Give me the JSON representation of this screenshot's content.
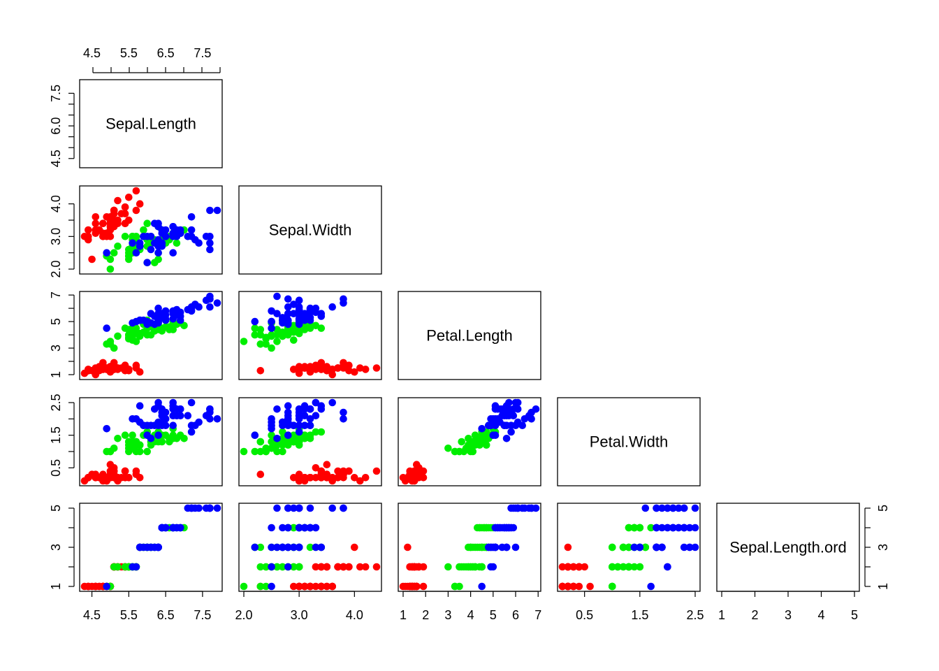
{
  "chart_data": {
    "type": "scatter",
    "layout": "lower-triangle scatterplot matrix",
    "variables": [
      "Sepal.Length",
      "Sepal.Width",
      "Petal.Length",
      "Petal.Width",
      "Sepal.Length.ord"
    ],
    "axes": [
      {
        "name": "Sepal.Length",
        "lim": [
          4.3,
          7.9
        ],
        "ticks": [
          4.5,
          5.5,
          6.5,
          7.5
        ],
        "left_ticks": [
          4.5,
          6.0,
          7.5
        ],
        "left_tick_labels": [
          "4.5",
          "6.0",
          "7.5"
        ]
      },
      {
        "name": "Sepal.Width",
        "lim": [
          2.0,
          4.4
        ],
        "ticks": [
          2.0,
          3.0,
          4.0
        ],
        "tick_labels": [
          "2.0",
          "3.0",
          "4.0"
        ],
        "left_tick_labels": [
          "2.0",
          "3.0",
          "4.0"
        ]
      },
      {
        "name": "Petal.Length",
        "lim": [
          1.0,
          6.9
        ],
        "ticks": [
          1,
          2,
          3,
          4,
          5,
          6,
          7
        ],
        "left_ticks": [
          1,
          3,
          5,
          7
        ]
      },
      {
        "name": "Petal.Width",
        "lim": [
          0.1,
          2.5
        ],
        "ticks": [
          0.5,
          1.5,
          2.5
        ]
      },
      {
        "name": "Sepal.Length.ord",
        "lim": [
          1,
          5
        ],
        "ticks": [
          1,
          2,
          3,
          4,
          5
        ],
        "left_ticks": [
          1,
          3,
          5
        ]
      }
    ],
    "group_colors": [
      "#ff0000",
      "#00ee00",
      "#0000ff"
    ],
    "grid": false,
    "legend": "none",
    "points": [
      [
        5.1,
        3.5,
        1.4,
        0.2,
        2,
        0
      ],
      [
        4.9,
        3.0,
        1.4,
        0.2,
        1,
        0
      ],
      [
        4.7,
        3.2,
        1.3,
        0.2,
        1,
        0
      ],
      [
        4.6,
        3.1,
        1.5,
        0.2,
        1,
        0
      ],
      [
        5.0,
        3.6,
        1.4,
        0.2,
        1,
        0
      ],
      [
        5.4,
        3.9,
        1.7,
        0.4,
        2,
        0
      ],
      [
        4.6,
        3.4,
        1.4,
        0.3,
        1,
        0
      ],
      [
        5.0,
        3.4,
        1.5,
        0.2,
        1,
        0
      ],
      [
        4.4,
        2.9,
        1.4,
        0.2,
        1,
        0
      ],
      [
        4.9,
        3.1,
        1.5,
        0.1,
        1,
        0
      ],
      [
        5.4,
        3.7,
        1.5,
        0.2,
        2,
        0
      ],
      [
        4.8,
        3.4,
        1.6,
        0.2,
        1,
        0
      ],
      [
        4.8,
        3.0,
        1.4,
        0.1,
        1,
        0
      ],
      [
        4.3,
        3.0,
        1.1,
        0.1,
        1,
        0
      ],
      [
        5.8,
        4.0,
        1.2,
        0.2,
        3,
        0
      ],
      [
        5.7,
        4.4,
        1.5,
        0.4,
        2,
        0
      ],
      [
        5.4,
        3.9,
        1.3,
        0.4,
        2,
        0
      ],
      [
        5.1,
        3.5,
        1.4,
        0.3,
        2,
        0
      ],
      [
        5.7,
        3.8,
        1.7,
        0.3,
        2,
        0
      ],
      [
        5.1,
        3.8,
        1.5,
        0.3,
        2,
        0
      ],
      [
        5.4,
        3.4,
        1.7,
        0.2,
        2,
        0
      ],
      [
        5.1,
        3.7,
        1.5,
        0.4,
        2,
        0
      ],
      [
        4.6,
        3.6,
        1.0,
        0.2,
        1,
        0
      ],
      [
        5.1,
        3.3,
        1.7,
        0.5,
        2,
        0
      ],
      [
        4.8,
        3.4,
        1.9,
        0.2,
        1,
        0
      ],
      [
        5.0,
        3.0,
        1.6,
        0.2,
        1,
        0
      ],
      [
        5.0,
        3.4,
        1.6,
        0.4,
        1,
        0
      ],
      [
        5.2,
        3.5,
        1.5,
        0.2,
        2,
        0
      ],
      [
        5.2,
        3.4,
        1.4,
        0.2,
        2,
        0
      ],
      [
        4.7,
        3.2,
        1.6,
        0.2,
        1,
        0
      ],
      [
        4.8,
        3.1,
        1.6,
        0.2,
        1,
        0
      ],
      [
        5.4,
        3.4,
        1.5,
        0.4,
        2,
        0
      ],
      [
        5.2,
        4.1,
        1.5,
        0.1,
        2,
        0
      ],
      [
        5.5,
        4.2,
        1.4,
        0.2,
        2,
        0
      ],
      [
        4.9,
        3.1,
        1.5,
        0.2,
        1,
        0
      ],
      [
        5.0,
        3.2,
        1.2,
        0.2,
        1,
        0
      ],
      [
        5.5,
        3.5,
        1.3,
        0.2,
        2,
        0
      ],
      [
        4.9,
        3.6,
        1.4,
        0.1,
        1,
        0
      ],
      [
        4.4,
        3.0,
        1.3,
        0.2,
        1,
        0
      ],
      [
        5.1,
        3.4,
        1.5,
        0.2,
        2,
        0
      ],
      [
        5.0,
        3.5,
        1.3,
        0.3,
        1,
        0
      ],
      [
        4.5,
        2.3,
        1.3,
        0.3,
        1,
        0
      ],
      [
        4.4,
        3.2,
        1.3,
        0.2,
        1,
        0
      ],
      [
        5.0,
        3.5,
        1.6,
        0.6,
        1,
        0
      ],
      [
        5.1,
        3.8,
        1.9,
        0.4,
        2,
        0
      ],
      [
        4.8,
        3.0,
        1.4,
        0.3,
        1,
        0
      ],
      [
        5.1,
        3.8,
        1.6,
        0.2,
        2,
        0
      ],
      [
        4.6,
        3.2,
        1.4,
        0.2,
        1,
        0
      ],
      [
        5.3,
        3.7,
        1.5,
        0.2,
        2,
        0
      ],
      [
        5.0,
        3.3,
        1.4,
        0.2,
        1,
        0
      ],
      [
        7.0,
        3.2,
        4.7,
        1.4,
        4,
        1
      ],
      [
        6.4,
        3.2,
        4.5,
        1.5,
        4,
        1
      ],
      [
        6.9,
        3.1,
        4.9,
        1.5,
        4,
        1
      ],
      [
        5.5,
        2.3,
        4.0,
        1.3,
        2,
        1
      ],
      [
        6.5,
        2.8,
        4.6,
        1.5,
        4,
        1
      ],
      [
        5.7,
        2.8,
        4.5,
        1.3,
        2,
        1
      ],
      [
        6.3,
        3.3,
        4.7,
        1.6,
        3,
        1
      ],
      [
        4.9,
        2.4,
        3.3,
        1.0,
        1,
        1
      ],
      [
        6.6,
        2.9,
        4.6,
        1.3,
        4,
        1
      ],
      [
        5.2,
        2.7,
        3.9,
        1.4,
        2,
        1
      ],
      [
        5.0,
        2.0,
        3.5,
        1.0,
        1,
        1
      ],
      [
        5.9,
        3.0,
        4.2,
        1.5,
        3,
        1
      ],
      [
        6.0,
        2.2,
        4.0,
        1.0,
        3,
        1
      ],
      [
        6.1,
        2.9,
        4.7,
        1.4,
        3,
        1
      ],
      [
        5.6,
        2.9,
        3.6,
        1.3,
        2,
        1
      ],
      [
        6.7,
        3.1,
        4.4,
        1.4,
        4,
        1
      ],
      [
        5.6,
        3.0,
        4.5,
        1.5,
        2,
        1
      ],
      [
        5.8,
        2.7,
        4.1,
        1.0,
        3,
        1
      ],
      [
        6.2,
        2.2,
        4.5,
        1.5,
        3,
        1
      ],
      [
        5.6,
        2.5,
        3.9,
        1.1,
        2,
        1
      ],
      [
        5.9,
        3.2,
        4.8,
        1.8,
        3,
        1
      ],
      [
        6.1,
        2.8,
        4.0,
        1.3,
        3,
        1
      ],
      [
        6.3,
        2.5,
        4.9,
        1.5,
        3,
        1
      ],
      [
        6.1,
        2.8,
        4.7,
        1.2,
        3,
        1
      ],
      [
        6.4,
        2.9,
        4.3,
        1.3,
        4,
        1
      ],
      [
        6.6,
        3.0,
        4.4,
        1.4,
        4,
        1
      ],
      [
        6.8,
        2.8,
        4.8,
        1.4,
        4,
        1
      ],
      [
        6.7,
        3.0,
        5.0,
        1.7,
        4,
        1
      ],
      [
        6.0,
        2.9,
        4.5,
        1.5,
        3,
        1
      ],
      [
        5.7,
        2.6,
        3.5,
        1.0,
        2,
        1
      ],
      [
        5.5,
        2.4,
        3.8,
        1.1,
        2,
        1
      ],
      [
        5.5,
        2.4,
        3.7,
        1.0,
        2,
        1
      ],
      [
        5.8,
        2.7,
        3.9,
        1.2,
        3,
        1
      ],
      [
        6.0,
        2.7,
        5.1,
        1.6,
        3,
        1
      ],
      [
        5.4,
        3.0,
        4.5,
        1.5,
        2,
        1
      ],
      [
        6.0,
        3.4,
        4.5,
        1.6,
        3,
        1
      ],
      [
        6.7,
        3.1,
        4.7,
        1.5,
        4,
        1
      ],
      [
        6.3,
        2.3,
        4.4,
        1.3,
        3,
        1
      ],
      [
        5.6,
        3.0,
        4.1,
        1.3,
        2,
        1
      ],
      [
        5.5,
        2.5,
        4.0,
        1.3,
        2,
        1
      ],
      [
        5.5,
        2.6,
        4.4,
        1.2,
        2,
        1
      ],
      [
        6.1,
        3.0,
        4.6,
        1.4,
        3,
        1
      ],
      [
        5.8,
        2.6,
        4.0,
        1.2,
        3,
        1
      ],
      [
        5.0,
        2.3,
        3.3,
        1.0,
        1,
        1
      ],
      [
        5.6,
        2.7,
        4.2,
        1.3,
        2,
        1
      ],
      [
        5.7,
        3.0,
        4.2,
        1.2,
        2,
        1
      ],
      [
        5.7,
        2.9,
        4.2,
        1.3,
        2,
        1
      ],
      [
        6.2,
        2.9,
        4.3,
        1.3,
        3,
        1
      ],
      [
        5.1,
        2.5,
        3.0,
        1.1,
        2,
        1
      ],
      [
        5.7,
        2.8,
        4.1,
        1.3,
        2,
        1
      ],
      [
        6.3,
        3.3,
        6.0,
        2.5,
        3,
        2
      ],
      [
        5.8,
        2.7,
        5.1,
        1.9,
        3,
        2
      ],
      [
        7.1,
        3.0,
        5.9,
        2.1,
        5,
        2
      ],
      [
        6.3,
        2.9,
        5.6,
        1.8,
        3,
        2
      ],
      [
        6.5,
        3.0,
        5.8,
        2.2,
        4,
        2
      ],
      [
        7.6,
        3.0,
        6.6,
        2.1,
        5,
        2
      ],
      [
        4.9,
        2.5,
        4.5,
        1.7,
        1,
        2
      ],
      [
        7.3,
        2.9,
        6.3,
        1.8,
        5,
        2
      ],
      [
        6.7,
        2.5,
        5.8,
        1.8,
        4,
        2
      ],
      [
        7.2,
        3.6,
        6.1,
        2.5,
        5,
        2
      ],
      [
        6.5,
        3.2,
        5.1,
        2.0,
        4,
        2
      ],
      [
        6.4,
        2.7,
        5.3,
        1.9,
        4,
        2
      ],
      [
        6.8,
        3.0,
        5.5,
        2.1,
        4,
        2
      ],
      [
        5.7,
        2.5,
        5.0,
        2.0,
        2,
        2
      ],
      [
        5.8,
        2.8,
        5.1,
        2.4,
        3,
        2
      ],
      [
        6.4,
        3.2,
        5.3,
        2.3,
        4,
        2
      ],
      [
        6.5,
        3.0,
        5.5,
        1.8,
        4,
        2
      ],
      [
        7.7,
        3.8,
        6.7,
        2.2,
        5,
        2
      ],
      [
        7.7,
        2.6,
        6.9,
        2.3,
        5,
        2
      ],
      [
        6.0,
        2.2,
        5.0,
        1.5,
        3,
        2
      ],
      [
        6.9,
        3.2,
        5.7,
        2.3,
        4,
        2
      ],
      [
        5.6,
        2.8,
        4.9,
        2.0,
        2,
        2
      ],
      [
        7.7,
        2.8,
        6.7,
        2.0,
        5,
        2
      ],
      [
        6.3,
        2.7,
        4.9,
        1.8,
        3,
        2
      ],
      [
        6.7,
        3.3,
        5.7,
        2.1,
        4,
        2
      ],
      [
        7.2,
        3.2,
        6.0,
        1.8,
        5,
        2
      ],
      [
        6.2,
        2.8,
        4.8,
        1.8,
        3,
        2
      ],
      [
        6.1,
        3.0,
        4.9,
        1.8,
        3,
        2
      ],
      [
        6.4,
        2.8,
        5.6,
        2.1,
        4,
        2
      ],
      [
        7.2,
        3.0,
        5.8,
        1.6,
        5,
        2
      ],
      [
        7.4,
        2.8,
        6.1,
        1.9,
        5,
        2
      ],
      [
        7.9,
        3.8,
        6.4,
        2.0,
        5,
        2
      ],
      [
        6.4,
        2.8,
        5.6,
        2.2,
        4,
        2
      ],
      [
        6.3,
        2.8,
        5.1,
        1.5,
        3,
        2
      ],
      [
        6.1,
        2.6,
        5.6,
        1.4,
        3,
        2
      ],
      [
        7.7,
        3.0,
        6.1,
        2.3,
        5,
        2
      ],
      [
        6.3,
        3.4,
        5.6,
        2.4,
        3,
        2
      ],
      [
        6.4,
        3.1,
        5.5,
        1.8,
        4,
        2
      ],
      [
        6.0,
        3.0,
        4.8,
        1.8,
        3,
        2
      ],
      [
        6.9,
        3.1,
        5.4,
        2.1,
        4,
        2
      ],
      [
        6.7,
        3.1,
        5.6,
        2.4,
        4,
        2
      ],
      [
        6.9,
        3.1,
        5.1,
        2.3,
        4,
        2
      ],
      [
        5.8,
        2.7,
        5.1,
        1.9,
        3,
        2
      ],
      [
        6.8,
        3.2,
        5.9,
        2.3,
        4,
        2
      ],
      [
        6.7,
        3.3,
        5.7,
        2.5,
        4,
        2
      ],
      [
        6.7,
        3.0,
        5.2,
        2.3,
        4,
        2
      ],
      [
        6.3,
        2.5,
        5.0,
        1.9,
        3,
        2
      ],
      [
        6.5,
        3.0,
        5.2,
        2.0,
        4,
        2
      ],
      [
        6.2,
        3.4,
        5.4,
        2.3,
        3,
        2
      ],
      [
        5.9,
        3.0,
        5.1,
        1.8,
        3,
        2
      ]
    ]
  }
}
